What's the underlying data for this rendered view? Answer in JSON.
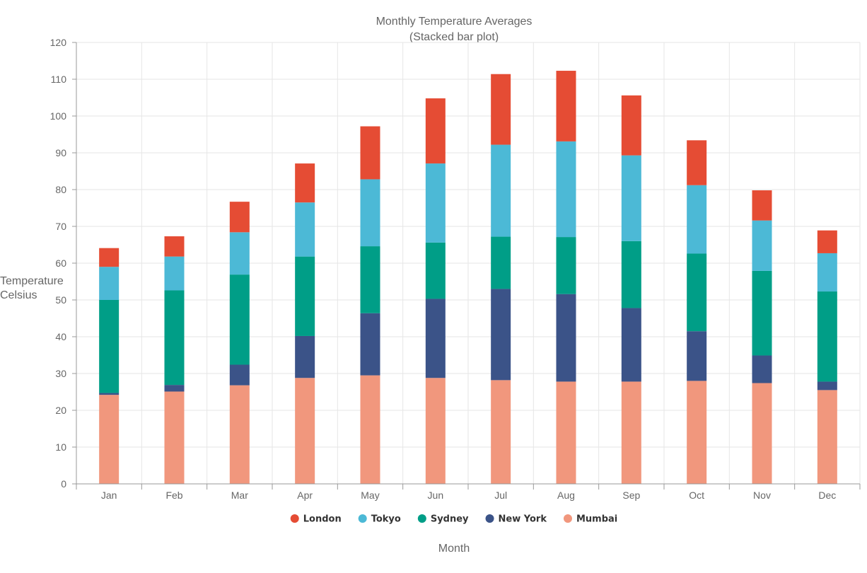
{
  "chart_data": {
    "type": "bar",
    "stacked": true,
    "title": "Monthly Temperature Averages",
    "subtitle": "(Stacked bar plot)",
    "xlabel": "Month",
    "ylabel": [
      "Temperature",
      "Celsius"
    ],
    "ylim": [
      0,
      120
    ],
    "yticks": [
      0,
      10,
      20,
      30,
      40,
      50,
      60,
      70,
      80,
      90,
      100,
      110,
      120
    ],
    "grid": true,
    "legend_position": "bottom",
    "categories": [
      "Jan",
      "Feb",
      "Mar",
      "Apr",
      "May",
      "Jun",
      "Jul",
      "Aug",
      "Sep",
      "Oct",
      "Nov",
      "Dec"
    ],
    "series": [
      {
        "name": "Mumbai",
        "color": "#f1977d",
        "values": [
          24.2,
          25.1,
          26.8,
          28.8,
          29.5,
          28.8,
          28.2,
          27.8,
          27.8,
          28.0,
          27.4,
          25.5
        ]
      },
      {
        "name": "New York",
        "color": "#3b5388",
        "values": [
          0.5,
          1.8,
          5.6,
          11.4,
          16.9,
          21.5,
          24.8,
          23.8,
          20.0,
          13.5,
          7.5,
          2.3
        ]
      },
      {
        "name": "Sydney",
        "color": "#009e87",
        "values": [
          25.3,
          25.7,
          24.5,
          21.6,
          18.2,
          15.3,
          14.2,
          15.5,
          18.2,
          21.1,
          23.0,
          24.5
        ]
      },
      {
        "name": "Tokyo",
        "color": "#4cb9d6",
        "values": [
          9.0,
          9.2,
          11.5,
          14.7,
          18.2,
          21.5,
          25.0,
          26.0,
          23.3,
          18.6,
          13.7,
          10.4
        ]
      },
      {
        "name": "London",
        "color": "#e54c34",
        "values": [
          5.1,
          5.5,
          8.3,
          10.6,
          14.4,
          17.7,
          19.2,
          19.2,
          16.3,
          12.2,
          8.2,
          6.2
        ]
      }
    ],
    "legend_order": [
      "London",
      "Tokyo",
      "Sydney",
      "New York",
      "Mumbai"
    ]
  },
  "colors": {
    "grid": "#e6e6e6",
    "axis": "#999999",
    "text": "#666666"
  }
}
